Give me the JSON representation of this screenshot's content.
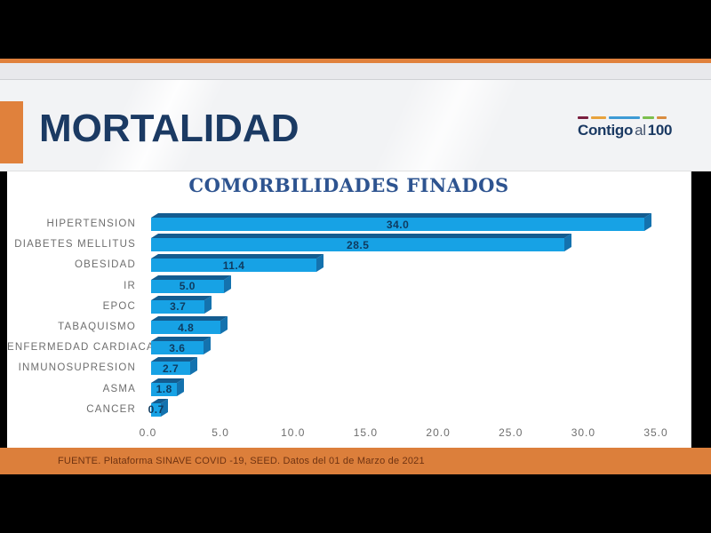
{
  "slide": {
    "title": "MORTALIDAD",
    "logo": {
      "text_bold_1": "Contigo",
      "text_light": "al",
      "text_bold_2": "100",
      "dashes": [
        {
          "color": "#7B1F3F",
          "width": 12
        },
        {
          "color": "#E8A33D",
          "width": 18
        },
        {
          "color": "#3E9BD5",
          "width": 36
        },
        {
          "color": "#7CBF4E",
          "width": 14
        },
        {
          "color": "#D98C3F",
          "width": 11
        }
      ]
    },
    "footer_source": "FUENTE. Plataforma SINAVE COVID -19, SEED. Datos del 01 de Marzo de 2021"
  },
  "chart_data": {
    "type": "bar",
    "orientation": "horizontal",
    "title": "COMORBILIDADES FINADOS",
    "categories": [
      "HIPERTENSION",
      "DIABETES MELLITUS",
      "OBESIDAD",
      "IR",
      "EPOC",
      "TABAQUISMO",
      "ENFERMEDAD CARDIACA",
      "INMUNOSUPRESION",
      "ASMA",
      "CANCER"
    ],
    "values": [
      34.0,
      28.5,
      11.4,
      5.0,
      3.7,
      4.8,
      3.6,
      2.7,
      1.8,
      0.7
    ],
    "value_labels": [
      "34.0",
      "28.5",
      "11.4",
      "5.0",
      "3.7",
      "4.8",
      "3.6",
      "2.7",
      "1.8",
      "0.7"
    ],
    "x_ticks": [
      0,
      5,
      10,
      15,
      20,
      25,
      30,
      35
    ],
    "x_tick_labels": [
      "0.0",
      "5.0",
      "10.0",
      "15.0",
      "20.0",
      "25.0",
      "30.0",
      "35.0"
    ],
    "xlim": [
      0,
      35
    ],
    "grid": false,
    "legend": null,
    "xlabel": "",
    "ylabel": ""
  },
  "theme": {
    "top_bar": "#000000",
    "bottom_bar": "#000000",
    "accent_orange": "#E0813C",
    "footer_orange": "#DC7F3B",
    "header_bg": "#F2F3F5",
    "band_gray": "#E8E9EC",
    "slide_title_color": "#1B3A63",
    "footer_text_color": "#6F3312",
    "chart_title_color": "#2E5490",
    "bar_face": "#17A2E5",
    "bar_top": "#135C90",
    "bar_side": "#1472AE",
    "value_label_color": "#0F3A5E",
    "category_label_color": "#6E6E6E",
    "axis_label_color": "#6E6E6E"
  }
}
